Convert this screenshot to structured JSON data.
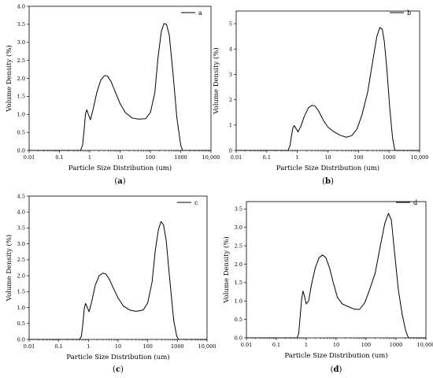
{
  "chart_data": [
    {
      "type": "line",
      "caption_letter": "a",
      "caption": "(a)",
      "legend_label": "a",
      "xlabel": "Particle Size Distribution (um)",
      "ylabel": "Volume Density (%)",
      "x_scale": "log",
      "xlim": [
        0.01,
        10000
      ],
      "x_tick_labels": [
        "0.01",
        "0.1",
        "1",
        "10",
        "100",
        "1000",
        "10,000"
      ],
      "ylim": [
        0,
        4.0
      ],
      "y_ticks": [
        0,
        0.5,
        1.0,
        1.5,
        2.0,
        2.5,
        3.0,
        3.5,
        4.0
      ],
      "y_tick_labels": [
        "0.0",
        "0.5",
        "1.0",
        "1.5",
        "2.0",
        "2.5",
        "3.0",
        "3.5",
        "4.0"
      ],
      "series": [
        {
          "x": [
            0.01,
            0.5,
            0.58,
            0.65,
            0.72,
            0.8,
            0.9,
            1.05,
            1.3,
            1.7,
            2.3,
            3.0,
            3.8,
            5.0,
            7.0,
            10,
            15,
            25,
            40,
            70,
            100,
            140,
            180,
            230,
            280,
            340,
            420,
            550,
            750,
            1000,
            1150,
            10000
          ],
          "y": [
            0,
            0,
            0.15,
            0.55,
            1.0,
            1.13,
            1.0,
            0.85,
            1.15,
            1.6,
            1.95,
            2.07,
            2.07,
            1.92,
            1.62,
            1.3,
            1.05,
            0.9,
            0.87,
            0.88,
            1.05,
            1.6,
            2.6,
            3.3,
            3.52,
            3.5,
            3.2,
            2.2,
            0.9,
            0.15,
            0,
            0
          ]
        }
      ]
    },
    {
      "type": "line",
      "caption_letter": "b",
      "caption": "(b)",
      "legend_label": "b",
      "xlabel": "Particle Size Distribution (um)",
      "ylabel": "Volume Density (%)",
      "x_scale": "log",
      "xlim": [
        0.01,
        10000
      ],
      "x_tick_labels": [
        "0.01",
        "0.1",
        "1",
        "10",
        "100",
        "1000",
        "10,000"
      ],
      "ylim": [
        0,
        5.5
      ],
      "y_ticks": [
        0,
        1,
        2,
        3,
        4,
        5
      ],
      "y_tick_labels": [
        "0",
        "1",
        "2",
        "3",
        "4",
        "5"
      ],
      "series": [
        {
          "x": [
            0.01,
            0.5,
            0.58,
            0.65,
            0.72,
            0.8,
            0.92,
            1.05,
            1.3,
            1.7,
            2.3,
            3.0,
            3.8,
            5.0,
            7.0,
            10,
            15,
            25,
            40,
            60,
            90,
            130,
            200,
            300,
            400,
            500,
            600,
            700,
            850,
            1050,
            1300,
            1550,
            10000
          ],
          "y": [
            0,
            0,
            0.2,
            0.6,
            0.9,
            0.98,
            0.85,
            0.73,
            0.95,
            1.35,
            1.68,
            1.78,
            1.75,
            1.55,
            1.2,
            0.92,
            0.75,
            0.6,
            0.52,
            0.58,
            0.85,
            1.4,
            2.3,
            3.6,
            4.5,
            4.85,
            4.78,
            4.3,
            3.2,
            1.7,
            0.5,
            0,
            0
          ]
        }
      ]
    },
    {
      "type": "line",
      "caption_letter": "c",
      "caption": "(c)",
      "legend_label": "c",
      "xlabel": "Particle Size Distribution (um)",
      "ylabel": "Volume Density (%)",
      "x_scale": "log",
      "xlim": [
        0.01,
        10000
      ],
      "x_tick_labels": [
        "0.01",
        "0.1",
        "1",
        "10",
        "100",
        "1000",
        "10,000"
      ],
      "ylim": [
        0,
        4.5
      ],
      "y_ticks": [
        0,
        0.5,
        1.0,
        1.5,
        2.0,
        2.5,
        3.0,
        3.5,
        4.0,
        4.5
      ],
      "y_tick_labels": [
        "0.0",
        "0.5",
        "1.0",
        "1.5",
        "2.0",
        "2.5",
        "3.0",
        "3.5",
        "4.0",
        "4.5"
      ],
      "series": [
        {
          "x": [
            0.01,
            0.5,
            0.58,
            0.65,
            0.72,
            0.8,
            0.92,
            1.05,
            1.3,
            1.7,
            2.3,
            3.0,
            3.8,
            5.0,
            7.0,
            10,
            15,
            25,
            40,
            70,
            100,
            140,
            180,
            230,
            280,
            340,
            420,
            550,
            750,
            950,
            1100,
            10000
          ],
          "y": [
            0,
            0,
            0.1,
            0.5,
            0.95,
            1.13,
            1.0,
            0.87,
            1.2,
            1.7,
            2.0,
            2.08,
            2.06,
            1.9,
            1.6,
            1.3,
            1.05,
            0.92,
            0.88,
            0.92,
            1.15,
            1.8,
            2.8,
            3.45,
            3.7,
            3.6,
            3.1,
            1.9,
            0.6,
            0.1,
            0,
            0
          ]
        }
      ]
    },
    {
      "type": "line",
      "caption_letter": "d",
      "caption": "(d)",
      "legend_label": "d",
      "xlabel": "Particle Size Distribution (um)",
      "ylabel": "Volume Density (%)",
      "x_scale": "log",
      "xlim": [
        0.01,
        10000
      ],
      "x_tick_labels": [
        "0.01",
        "0.1",
        "1",
        "10",
        "100",
        "1000",
        "10,000"
      ],
      "ylim": [
        0,
        3.7
      ],
      "y_ticks": [
        0,
        0.5,
        1.0,
        1.5,
        2.0,
        2.5,
        3.0,
        3.5
      ],
      "y_tick_labels": [
        "0.0",
        "0.5",
        "1.0",
        "1.5",
        "2.0",
        "2.5",
        "3.0",
        "3.5"
      ],
      "series": [
        {
          "x": [
            0.01,
            0.5,
            0.56,
            0.63,
            0.7,
            0.78,
            0.88,
            1.0,
            1.2,
            1.5,
            2.0,
            2.7,
            3.5,
            4.5,
            6.0,
            8.0,
            11,
            16,
            25,
            40,
            60,
            90,
            130,
            200,
            300,
            420,
            560,
            700,
            900,
            1200,
            1600,
            2100,
            2600,
            10000
          ],
          "y": [
            0,
            0,
            0.12,
            0.6,
            1.05,
            1.27,
            1.12,
            0.92,
            1.0,
            1.45,
            1.9,
            2.18,
            2.25,
            2.18,
            1.9,
            1.5,
            1.1,
            0.92,
            0.85,
            0.78,
            0.77,
            0.95,
            1.3,
            1.75,
            2.5,
            3.1,
            3.38,
            3.2,
            2.3,
            1.3,
            0.65,
            0.2,
            0,
            0
          ]
        }
      ]
    }
  ]
}
